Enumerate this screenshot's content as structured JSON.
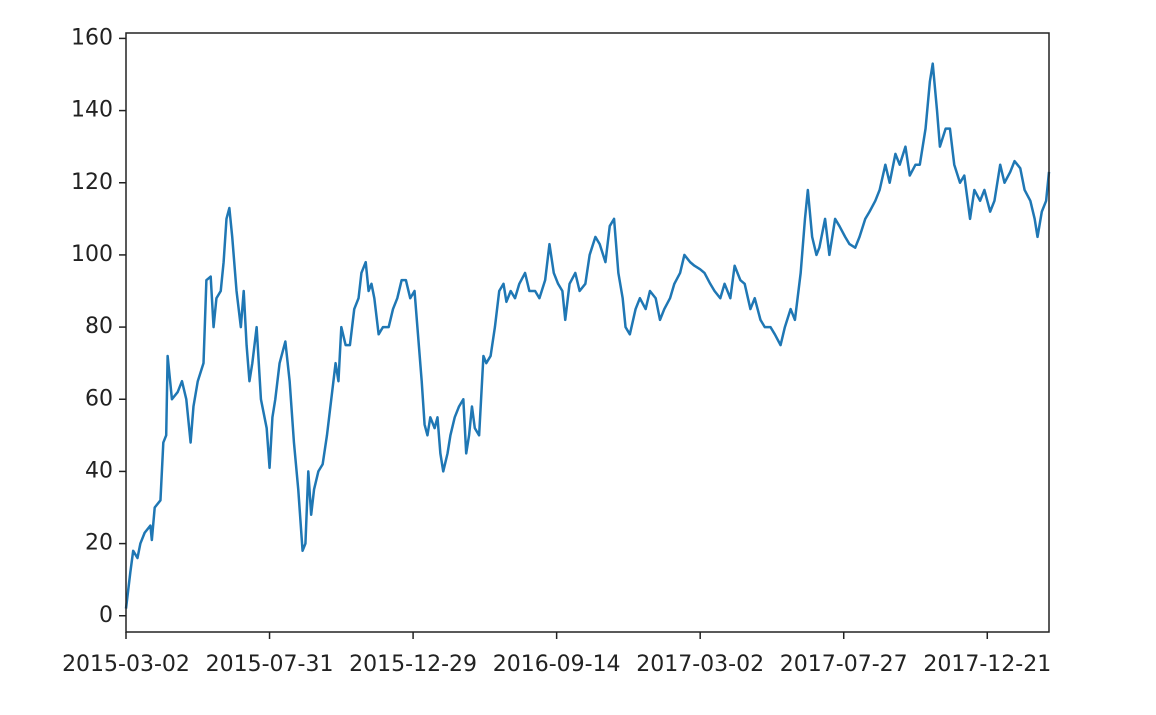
{
  "chart_data": {
    "type": "line",
    "x": [
      0,
      3,
      5,
      8,
      10,
      13,
      17,
      18,
      20,
      24,
      26,
      28,
      29,
      32,
      36,
      39,
      42,
      45,
      47,
      50,
      54,
      56,
      59,
      61,
      63,
      66,
      68,
      70,
      72,
      74,
      77,
      80,
      82,
      84,
      86,
      88,
      91,
      94,
      98,
      100,
      102,
      104,
      107,
      111,
      114,
      117,
      120,
      123,
      125,
      127,
      129,
      131,
      134,
      137,
      140,
      143,
      146,
      148,
      150,
      153,
      156,
      159,
      162,
      164,
      167,
      169,
      171,
      173,
      176,
      179,
      183,
      186,
      189,
      192,
      195,
      198,
      201,
      203,
      206,
      208,
      210,
      212,
      215,
      217,
      219,
      221,
      224,
      226,
      229,
      232,
      235,
      237,
      239,
      241,
      243,
      246,
      249,
      251,
      254,
      257,
      260,
      263,
      265,
      268,
      271,
      274,
      278,
      281,
      285,
      288,
      292,
      295,
      298,
      301,
      304,
      306,
      309,
      313,
      316,
      320,
      323,
      327,
      330,
      334,
      337,
      340,
      343,
      346,
      348,
      351,
      355,
      358,
      362,
      365,
      369,
      372,
      375,
      379,
      382,
      386,
      389,
      393,
      396,
      400,
      403,
      407,
      410,
      414,
      417,
      421,
      424,
      428,
      431,
      435,
      438,
      442,
      445,
      449,
      452,
      456,
      459,
      463,
      466,
      470,
      473,
      475,
      478,
      481,
      483,
      487,
      490,
      494,
      497,
      501,
      504,
      508,
      511,
      515,
      518,
      522,
      525,
      529,
      532,
      536,
      539,
      543,
      546,
      550,
      553,
      557,
      560,
      562,
      565,
      567,
      571,
      574,
      577,
      581,
      584,
      588,
      591,
      595,
      598,
      602,
      605,
      609,
      612,
      616,
      619,
      623,
      626,
      630,
      633,
      635,
      638,
      641,
      643
    ],
    "series": [
      {
        "color": "#1f77b4",
        "values": [
          2,
          12,
          18,
          16,
          20,
          23,
          25,
          21,
          30,
          32,
          48,
          50,
          72,
          60,
          62,
          65,
          60,
          48,
          58,
          65,
          70,
          93,
          94,
          80,
          88,
          90,
          98,
          110,
          113,
          105,
          90,
          80,
          90,
          75,
          65,
          70,
          80,
          60,
          52,
          41,
          55,
          60,
          70,
          76,
          65,
          48,
          35,
          18,
          20,
          40,
          28,
          35,
          40,
          42,
          50,
          60,
          70,
          65,
          80,
          75,
          75,
          85,
          88,
          95,
          98,
          90,
          92,
          88,
          78,
          80,
          80,
          85,
          88,
          93,
          93,
          88,
          90,
          80,
          65,
          53,
          50,
          55,
          52,
          55,
          45,
          40,
          45,
          50,
          55,
          58,
          60,
          45,
          50,
          58,
          52,
          50,
          72,
          70,
          72,
          80,
          90,
          92,
          87,
          90,
          88,
          92,
          95,
          90,
          90,
          88,
          93,
          103,
          95,
          92,
          90,
          82,
          92,
          95,
          90,
          92,
          100,
          105,
          103,
          98,
          108,
          110,
          95,
          88,
          80,
          78,
          85,
          88,
          85,
          90,
          88,
          82,
          85,
          88,
          92,
          95,
          100,
          98,
          97,
          96,
          95,
          92,
          90,
          88,
          92,
          88,
          97,
          93,
          92,
          85,
          88,
          82,
          80,
          80,
          78,
          75,
          80,
          85,
          82,
          95,
          110,
          118,
          105,
          100,
          102,
          110,
          100,
          110,
          108,
          105,
          103,
          102,
          105,
          110,
          112,
          115,
          118,
          125,
          120,
          128,
          125,
          130,
          122,
          125,
          125,
          135,
          148,
          153,
          140,
          130,
          135,
          135,
          125,
          120,
          122,
          110,
          118,
          115,
          118,
          112,
          115,
          125,
          120,
          123,
          126,
          124,
          118,
          115,
          110,
          105,
          112,
          115,
          123
        ]
      }
    ],
    "xlim": [
      0,
      643
    ],
    "xticks": [
      {
        "value": 0,
        "label": "2015-03-02"
      },
      {
        "value": 100,
        "label": "2015-07-31"
      },
      {
        "value": 200,
        "label": "2015-12-29"
      },
      {
        "value": 300,
        "label": "2016-09-14"
      },
      {
        "value": 400,
        "label": "2017-03-02"
      },
      {
        "value": 500,
        "label": "2017-07-27"
      },
      {
        "value": 600,
        "label": "2017-12-21"
      }
    ],
    "ylim": [
      -4.5,
      161.5
    ],
    "yticks": [
      0,
      20,
      40,
      60,
      80,
      100,
      120,
      140,
      160
    ]
  }
}
